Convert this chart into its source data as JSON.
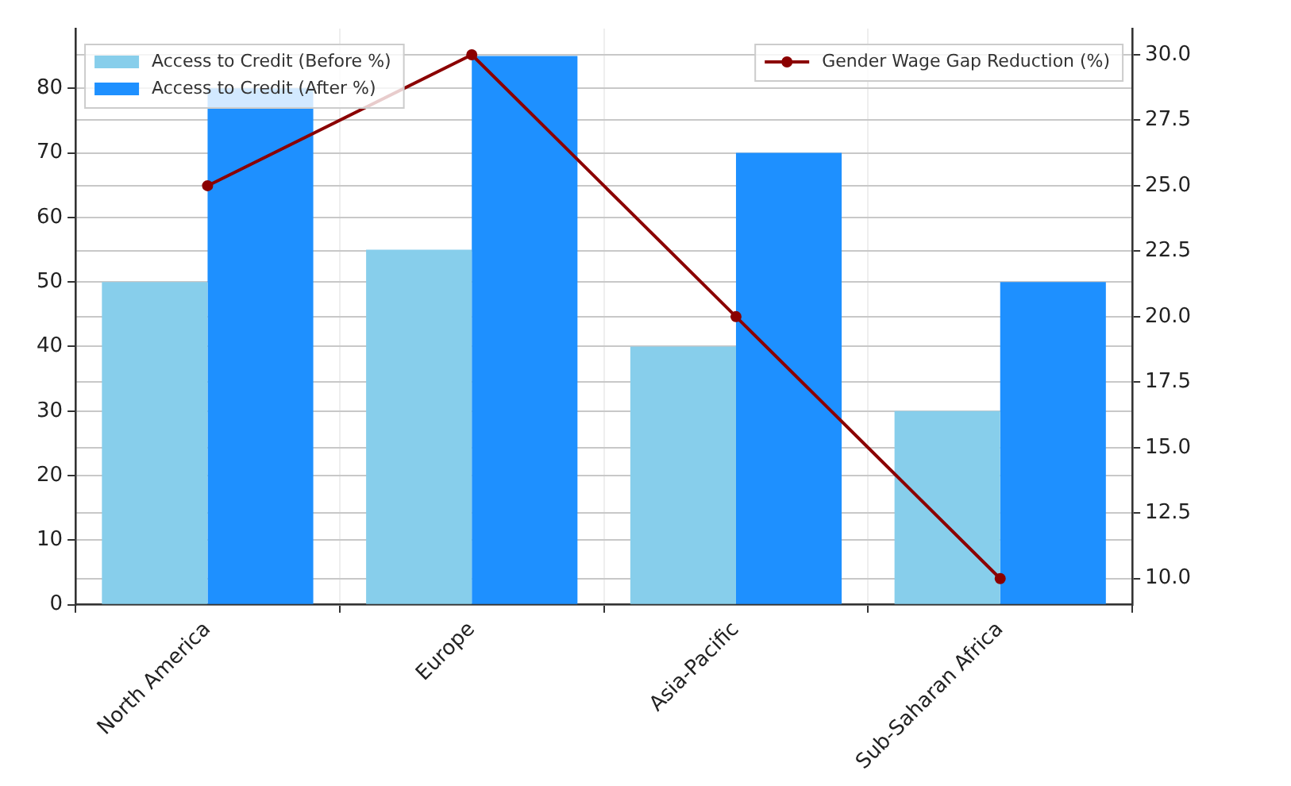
{
  "chart_data": {
    "type": "bar",
    "categories": [
      "North America",
      "Europe",
      "Asia-Pacific",
      "Sub-Saharan Africa"
    ],
    "series": [
      {
        "name": "Access to Credit (Before %)",
        "color": "#87ceeb",
        "values": [
          50,
          55,
          40,
          30
        ]
      },
      {
        "name": "Access to Credit (After %)",
        "color": "#1e90ff",
        "values": [
          80,
          85,
          70,
          50
        ]
      },
      {
        "name": "Gender Wage Gap Reduction (%)",
        "type": "line",
        "axis": "y2",
        "color": "#8b0000",
        "values": [
          25,
          30,
          20,
          10
        ]
      }
    ],
    "ylim": [
      0,
      89.25
    ],
    "yticks": [
      0,
      10,
      20,
      30,
      40,
      50,
      60,
      70,
      80
    ],
    "y2lim": [
      9,
      31
    ],
    "y2ticks": [
      {
        "value": 10,
        "label": "10.0"
      },
      {
        "value": 12.5,
        "label": "12.5"
      },
      {
        "value": 15,
        "label": "15.0"
      },
      {
        "value": 17.5,
        "label": "17.5"
      },
      {
        "value": 20,
        "label": "20.0"
      },
      {
        "value": 22.5,
        "label": "22.5"
      },
      {
        "value": 25,
        "label": "25.0"
      },
      {
        "value": 27.5,
        "label": "27.5"
      },
      {
        "value": 30,
        "label": "30.0"
      }
    ],
    "grid": true,
    "legend": "top",
    "marker": "circle",
    "line_style": "solid"
  }
}
